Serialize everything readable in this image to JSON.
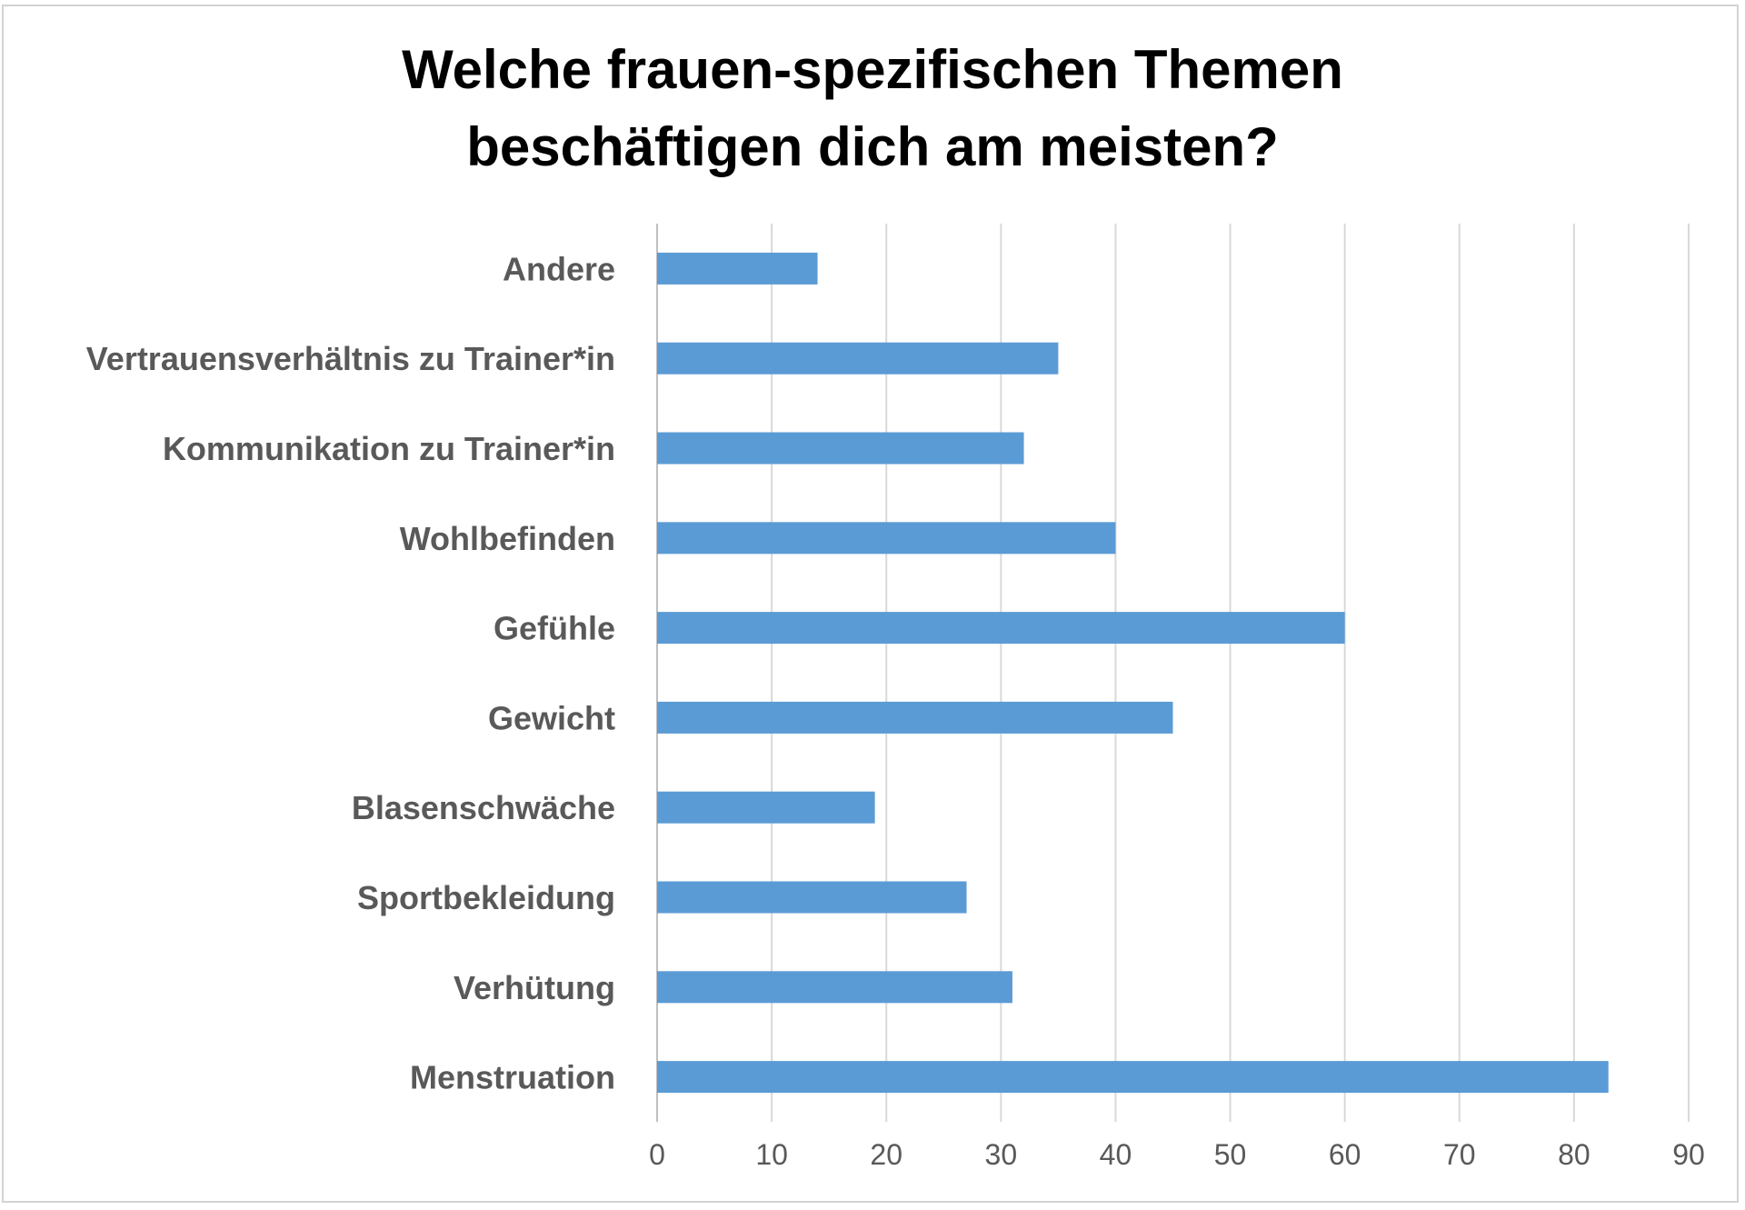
{
  "chart_data": {
    "type": "bar",
    "orientation": "horizontal",
    "title_lines": [
      "Welche frauen-spezifischen Themen",
      "beschäftigen dich am meisten?"
    ],
    "categories": [
      "Andere",
      "Vertrauensverhältnis zu Trainer*in",
      "Kommunikation zu Trainer*in",
      "Wohlbefinden",
      "Gefühle",
      "Gewicht",
      "Blasenschwäche",
      "Sportbekleidung",
      "Verhütung",
      "Menstruation"
    ],
    "values": [
      14,
      35,
      32,
      40,
      60,
      45,
      19,
      27,
      31,
      83
    ],
    "xlim": [
      0,
      90
    ],
    "x_ticks": [
      "0",
      "10",
      "20",
      "30",
      "40",
      "50",
      "60",
      "70",
      "80",
      "90"
    ],
    "grid": "vertical",
    "legend": "none",
    "bar_color": "#5b9bd5"
  }
}
